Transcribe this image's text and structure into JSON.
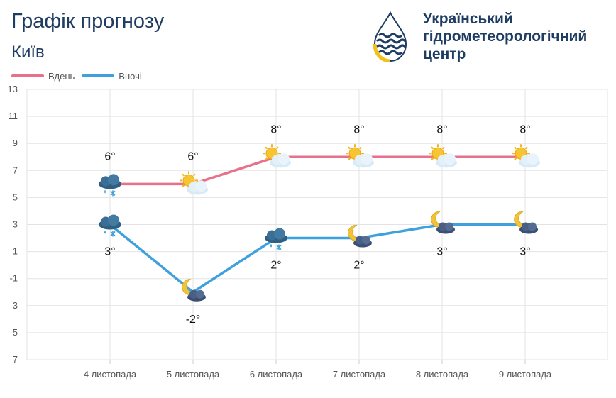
{
  "header": {
    "title": "Графік прогнозу",
    "city": "Київ"
  },
  "logo": {
    "lines": [
      "Український",
      "гідрометеорологічний",
      "центр"
    ],
    "icon": "water-drop-logo-icon"
  },
  "colors": {
    "day": "#e8708a",
    "night": "#3ea0dc",
    "title": "#1f3d63",
    "grid": "#e3e3e3",
    "axis_text": "#555555"
  },
  "chart_data": {
    "type": "line",
    "title": "Графік прогнозу",
    "xlabel": "",
    "ylabel": "",
    "categories": [
      "4 листопада",
      "5 листопада",
      "6 листопада",
      "7 листопада",
      "8 листопада",
      "9 листопада"
    ],
    "series": [
      {
        "name": "Вдень",
        "values": [
          6,
          6,
          8,
          8,
          8,
          8
        ],
        "labels": [
          "6°",
          "6°",
          "8°",
          "8°",
          "8°",
          "8°"
        ],
        "icons": [
          "cloud-rain-snow-icon",
          "sun-cloud-icon",
          "sun-cloud-icon",
          "sun-cloud-icon",
          "sun-cloud-icon",
          "sun-cloud-icon"
        ]
      },
      {
        "name": "Вночі",
        "values": [
          3,
          -2,
          2,
          2,
          3,
          3
        ],
        "labels": [
          "3°",
          "-2°",
          "2°",
          "2°",
          "3°",
          "3°"
        ],
        "icons": [
          "cloud-rain-snow-icon",
          "moon-cloud-icon",
          "cloud-rain-snow-icon",
          "moon-cloud-icon",
          "moon-cloud-icon",
          "moon-cloud-icon"
        ]
      }
    ],
    "yticks": [
      "13",
      "11",
      "9",
      "7",
      "5",
      "3",
      "1",
      "-1",
      "-3",
      "-5",
      "-7"
    ],
    "ylim": [
      -7,
      13
    ],
    "grid": true,
    "legend_position": "top-left"
  }
}
